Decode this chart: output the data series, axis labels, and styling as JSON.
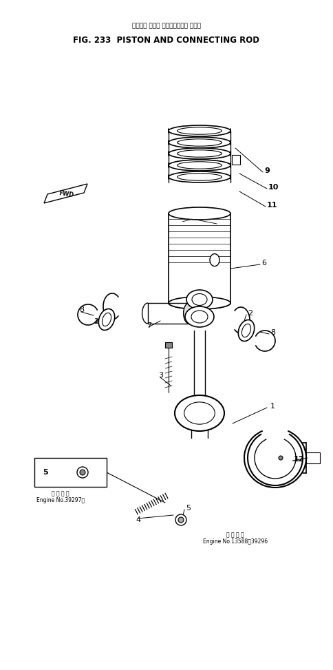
{
  "title_japanese": "ピストン および コネクティング ロッド",
  "title_english": "FIG. 233  PISTON AND CONNECTING ROD",
  "bg_color": "#ffffff",
  "line_color": "#000000",
  "fig_width": 4.85,
  "fig_height": 9.73,
  "dpi": 100,
  "annotation_engine1_line1": "適 用 号 機",
  "annotation_engine1_line2": "Engine No.39297～",
  "annotation_engine2_line1": "適 用 号 機",
  "annotation_engine2_line2": "Engine No.13588～39296"
}
